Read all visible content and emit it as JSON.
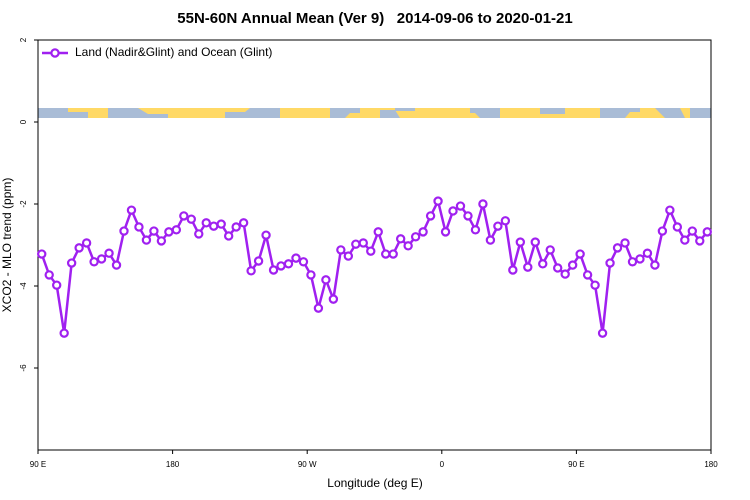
{
  "chart_data": {
    "type": "line",
    "title": "55N-60N Annual Mean (Ver 9)   2014-09-06 to 2020-01-21",
    "x_label": "Longitude (deg E)",
    "y_label": "XCO2 - MLO trend (ppm)",
    "xlim": [
      90,
      540
    ],
    "xticks": [
      {
        "value": 90,
        "label": "90 E"
      },
      {
        "value": 180,
        "label": "180"
      },
      {
        "value": 270,
        "label": "90 W"
      },
      {
        "value": 360,
        "label": "0"
      },
      {
        "value": 450,
        "label": "90 E"
      },
      {
        "value": 540,
        "label": "180"
      }
    ],
    "ylim": [
      -8,
      2
    ],
    "yticks": [
      -6,
      -4,
      -2,
      0,
      2
    ],
    "legend": "top-left",
    "x": [
      92.5,
      97.5,
      102.5,
      107.5,
      112.5,
      117.5,
      122.5,
      127.5,
      132.5,
      137.5,
      142.5,
      147.5,
      152.5,
      157.5,
      162.5,
      167.5,
      172.5,
      177.5,
      182.5,
      187.5,
      192.5,
      197.5,
      202.5,
      207.5,
      212.5,
      217.5,
      222.5,
      227.5,
      232.5,
      237.5,
      242.5,
      247.5,
      252.5,
      257.5,
      262.5,
      267.5,
      272.5,
      277.5,
      282.5,
      287.5,
      292.5,
      297.5,
      302.5,
      307.5,
      312.5,
      317.5,
      322.5,
      327.5,
      332.5,
      337.5,
      342.5,
      347.5,
      352.5,
      357.5,
      362.5,
      367.5,
      372.5,
      377.5,
      382.5,
      387.5,
      392.5,
      397.5,
      402.5,
      407.5,
      412.5,
      417.5,
      422.5,
      427.5,
      432.5,
      437.5,
      442.5,
      447.5,
      452.5,
      457.5,
      462.5,
      467.5,
      472.5,
      477.5,
      482.5,
      487.5,
      492.5,
      497.5,
      502.5,
      507.5,
      512.5,
      517.5,
      522.5,
      527.5,
      532.5,
      537.5
    ],
    "series": [
      {
        "name": "Land (Nadir&Glint) and Ocean (Glint)",
        "color": "#a020f0",
        "values": [
          -3.22,
          -3.73,
          -3.98,
          -5.15,
          -3.44,
          -3.07,
          -2.95,
          -3.41,
          -3.34,
          -3.2,
          -3.49,
          -2.66,
          -2.15,
          -2.56,
          -2.88,
          -2.66,
          -2.9,
          -2.68,
          -2.63,
          -2.29,
          -2.37,
          -2.73,
          -2.46,
          -2.54,
          -2.49,
          -2.78,
          -2.56,
          -2.46,
          -3.63,
          -3.39,
          -2.76,
          -3.61,
          -3.51,
          -3.46,
          -3.32,
          -3.41,
          -3.73,
          -4.54,
          -3.85,
          -4.32,
          -3.12,
          -3.27,
          -2.98,
          -2.95,
          -3.15,
          -2.68,
          -3.22,
          -3.22,
          -2.85,
          -3.02,
          -2.8,
          -2.68,
          -2.29,
          -1.93,
          -2.68,
          -2.17,
          -2.05,
          -2.29,
          -2.63,
          -2.0,
          -2.88,
          -2.54,
          -2.41,
          -3.61,
          -2.93,
          -3.54,
          -2.93,
          -3.46,
          -3.12,
          -3.56,
          -3.71,
          -3.49,
          -3.22,
          -3.73,
          -3.98,
          -5.15,
          -3.44,
          -3.07,
          -2.95,
          -3.41,
          -3.34,
          -3.2,
          -3.49,
          -2.66,
          -2.15,
          -2.56,
          -2.88,
          -2.66,
          -2.9,
          -2.68
        ]
      }
    ]
  }
}
